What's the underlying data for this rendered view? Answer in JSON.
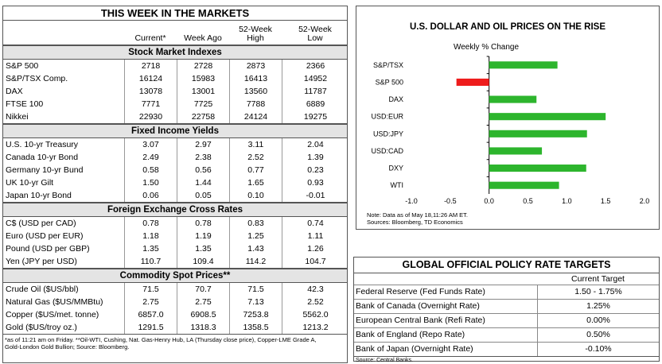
{
  "markets": {
    "title": "THIS WEEK IN THE MARKETS",
    "columns": {
      "current": "Current*",
      "week_ago": "Week Ago",
      "high_line1": "52-Week",
      "high_line2": "High",
      "low_line1": "52-Week",
      "low_line2": "Low"
    },
    "sections": [
      {
        "title": "Stock Market Indexes",
        "rows": [
          [
            "S&P 500",
            "2718",
            "2728",
            "2873",
            "2366"
          ],
          [
            "S&P/TSX Comp.",
            "16124",
            "15983",
            "16413",
            "14952"
          ],
          [
            "DAX",
            "13078",
            "13001",
            "13560",
            "11787"
          ],
          [
            "FTSE 100",
            "7771",
            "7725",
            "7788",
            "6889"
          ],
          [
            "Nikkei",
            "22930",
            "22758",
            "24124",
            "19275"
          ]
        ]
      },
      {
        "title": "Fixed Income Yields",
        "rows": [
          [
            "U.S. 10-yr Treasury",
            "3.07",
            "2.97",
            "3.11",
            "2.04"
          ],
          [
            "Canada 10-yr Bond",
            "2.49",
            "2.38",
            "2.52",
            "1.39"
          ],
          [
            "Germany 10-yr Bund",
            "0.58",
            "0.56",
            "0.77",
            "0.23"
          ],
          [
            "UK 10-yr Gilt",
            "1.50",
            "1.44",
            "1.65",
            "0.93"
          ],
          [
            "Japan 10-yr Bond",
            "0.06",
            "0.05",
            "0.10",
            "-0.01"
          ]
        ]
      },
      {
        "title": "Foreign Exchange Cross Rates",
        "rows": [
          [
            "C$ (USD per CAD)",
            "0.78",
            "0.78",
            "0.83",
            "0.74"
          ],
          [
            "Euro (USD per EUR)",
            "1.18",
            "1.19",
            "1.25",
            "1.11"
          ],
          [
            "Pound (USD per GBP)",
            "1.35",
            "1.35",
            "1.43",
            "1.26"
          ],
          [
            "Yen (JPY per USD)",
            "110.7",
            "109.4",
            "114.2",
            "104.7"
          ]
        ]
      },
      {
        "title": "Commodity Spot Prices**",
        "rows": [
          [
            "Crude Oil ($US/bbl)",
            "71.5",
            "70.7",
            "71.5",
            "42.3"
          ],
          [
            "Natural Gas ($US/MMBtu)",
            "2.75",
            "2.75",
            "7.13",
            "2.52"
          ],
          [
            "Copper ($US/met. tonne)",
            "6857.0",
            "6908.5",
            "7253.8",
            "5562.0"
          ],
          [
            "Gold ($US/troy oz.)",
            "1291.5",
            "1318.3",
            "1358.5",
            "1213.2"
          ]
        ]
      }
    ],
    "footnote_line1": "*as of 11:21 am on Friday. **Oil-WTI, Cushing, Nat. Gas-Henry Hub, LA (Thursday close price), Copper-LME Grade A,",
    "footnote_line2": "Gold-London Gold Bullion; Source: Bloomberg."
  },
  "chart_data": {
    "type": "bar",
    "orientation": "horizontal",
    "title": "U.S. DOLLAR AND OIL PRICES ON THE RISE",
    "subtitle": "Weekly % Change",
    "categories": [
      "S&P/TSX",
      "S&P 500",
      "DAX",
      "USD:EUR",
      "USD:JPY",
      "USD:CAD",
      "DXY",
      "WTI"
    ],
    "values": [
      0.88,
      -0.42,
      0.61,
      1.5,
      1.26,
      0.68,
      1.25,
      0.9
    ],
    "colors": [
      "#2db52d",
      "#ee1c1c",
      "#2db52d",
      "#2db52d",
      "#2db52d",
      "#2db52d",
      "#2db52d",
      "#2db52d"
    ],
    "xlim": [
      -1.0,
      2.0
    ],
    "xticks": [
      "-1.0",
      "-0.5",
      "0.0",
      "0.5",
      "1.0",
      "1.5",
      "2.0"
    ],
    "note_line1": "Note: Data as of May 18,11:26 AM ET.",
    "note_line2": "Sources: Bloomberg, TD Economics"
  },
  "policy": {
    "title": "GLOBAL OFFICIAL POLICY RATE TARGETS",
    "column_header": "Current Target",
    "rows": [
      [
        "Federal Reserve (Fed Funds Rate)",
        "1.50 - 1.75%"
      ],
      [
        "Bank of Canada (Overnight Rate)",
        "1.25%"
      ],
      [
        "European Central Bank (Refi Rate)",
        "0.00%"
      ],
      [
        "Bank of England (Repo Rate)",
        "0.50%"
      ],
      [
        "Bank of Japan (Overnight Rate)",
        "-0.10%"
      ]
    ],
    "source": "Source: Central Banks."
  }
}
